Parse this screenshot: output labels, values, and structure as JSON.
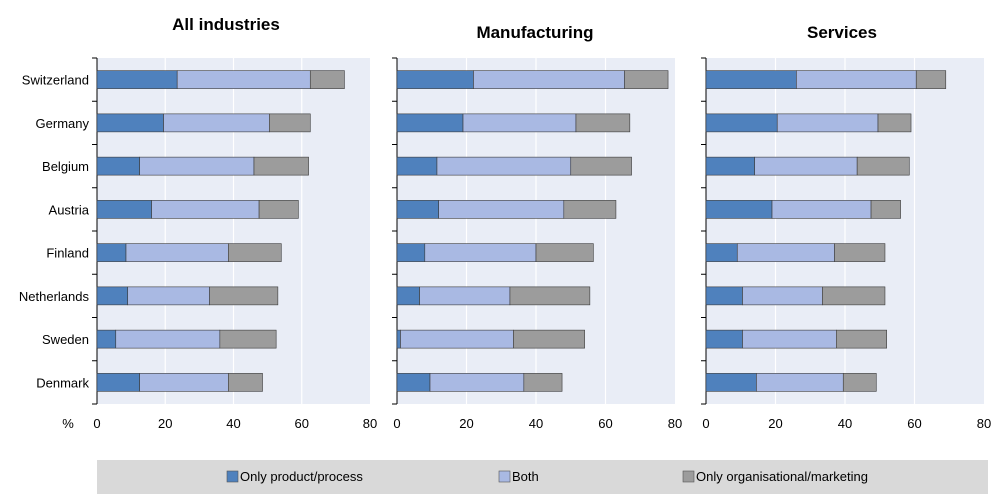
{
  "chart_data": {
    "type": "bar",
    "orientation": "horizontal",
    "stacked": true,
    "unit_label": "%",
    "categories": [
      "Switzerland",
      "Germany",
      "Belgium",
      "Austria",
      "Finland",
      "Netherlands",
      "Sweden",
      "Denmark"
    ],
    "xlim": [
      0,
      80
    ],
    "xticks": [
      0,
      20,
      40,
      60,
      80
    ],
    "grid": "vertical",
    "legend_placement": "bottom",
    "colors": {
      "Only product/process": "#4f81bd",
      "Both": "#a9b9e3",
      "Only organisational/marketing": "#9c9c9c",
      "panel_bg": "#e9edf6",
      "legend_bg": "#d9d9d9"
    },
    "legend": [
      "Only product/process",
      "Both",
      "Only organisational/marketing"
    ],
    "panels": [
      {
        "title": "All industries",
        "series": [
          {
            "name": "Only product/process",
            "values": [
              23.5,
              19.5,
              12.5,
              16,
              8.5,
              9,
              5.5,
              12.5
            ]
          },
          {
            "name": "Both",
            "values": [
              39,
              31,
              33.5,
              31.5,
              30,
              24,
              30.5,
              26
            ]
          },
          {
            "name": "Only organisational/marketing",
            "values": [
              10,
              12,
              16,
              11.5,
              15.5,
              20,
              16.5,
              10
            ]
          }
        ]
      },
      {
        "title": "Manufacturing",
        "series": [
          {
            "name": "Only product/process",
            "values": [
              22,
              19,
              11.5,
              12,
              8,
              6.5,
              1,
              9.5
            ]
          },
          {
            "name": "Both",
            "values": [
              43.5,
              32.5,
              38.5,
              36,
              32,
              26,
              32.5,
              27
            ]
          },
          {
            "name": "Only organisational/marketing",
            "values": [
              12.5,
              15.5,
              17.5,
              15,
              16.5,
              23,
              20.5,
              11
            ]
          }
        ]
      },
      {
        "title": "Services",
        "series": [
          {
            "name": "Only product/process",
            "values": [
              26,
              20.5,
              14,
              19,
              9,
              10.5,
              10.5,
              14.5
            ]
          },
          {
            "name": "Both",
            "values": [
              34.5,
              29,
              29.5,
              28.5,
              28,
              23,
              27,
              25
            ]
          },
          {
            "name": "Only organisational/marketing",
            "values": [
              8.5,
              9.5,
              15,
              8.5,
              14.5,
              18,
              14.5,
              9.5
            ]
          }
        ]
      }
    ]
  }
}
